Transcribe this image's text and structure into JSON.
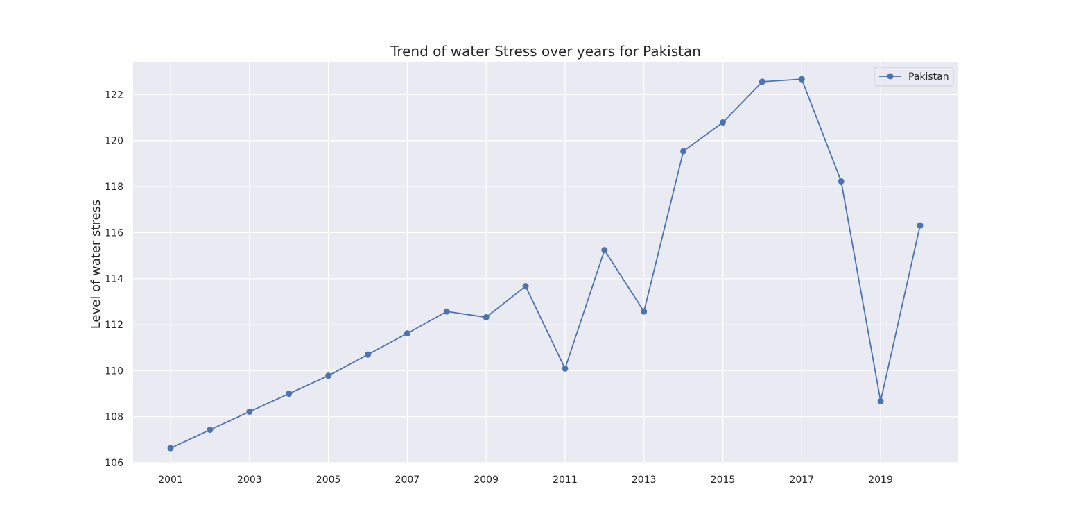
{
  "chart_data": {
    "type": "line",
    "title": "Trend of water Stress over years for Pakistan",
    "xlabel": "",
    "ylabel": "Level of water stress",
    "x": [
      2001,
      2002,
      2003,
      2004,
      2005,
      2006,
      2007,
      2008,
      2009,
      2010,
      2011,
      2012,
      2013,
      2014,
      2015,
      2016,
      2017,
      2018,
      2019,
      2020
    ],
    "xticks": [
      "2001",
      "2003",
      "2005",
      "2007",
      "2009",
      "2011",
      "2013",
      "2015",
      "2017",
      "2019"
    ],
    "yticks": [
      "106",
      "108",
      "110",
      "112",
      "114",
      "116",
      "118",
      "120",
      "122"
    ],
    "xlim": [
      2000.05,
      2020.95
    ],
    "ylim": [
      105.97,
      123.4
    ],
    "grid": true,
    "legend_position": "top-right",
    "series": [
      {
        "name": "Pakistan",
        "color": "#4c72b0",
        "marker": "circle",
        "values": [
          106.63,
          107.43,
          108.22,
          109.0,
          109.78,
          110.7,
          111.62,
          112.57,
          112.32,
          113.67,
          110.09,
          115.24,
          112.57,
          119.54,
          120.79,
          122.56,
          122.67,
          118.23,
          108.67,
          116.31
        ]
      }
    ],
    "colors": {
      "plot_background": "#eaeaf2",
      "grid": "#ffffff",
      "text": "#262626"
    }
  }
}
